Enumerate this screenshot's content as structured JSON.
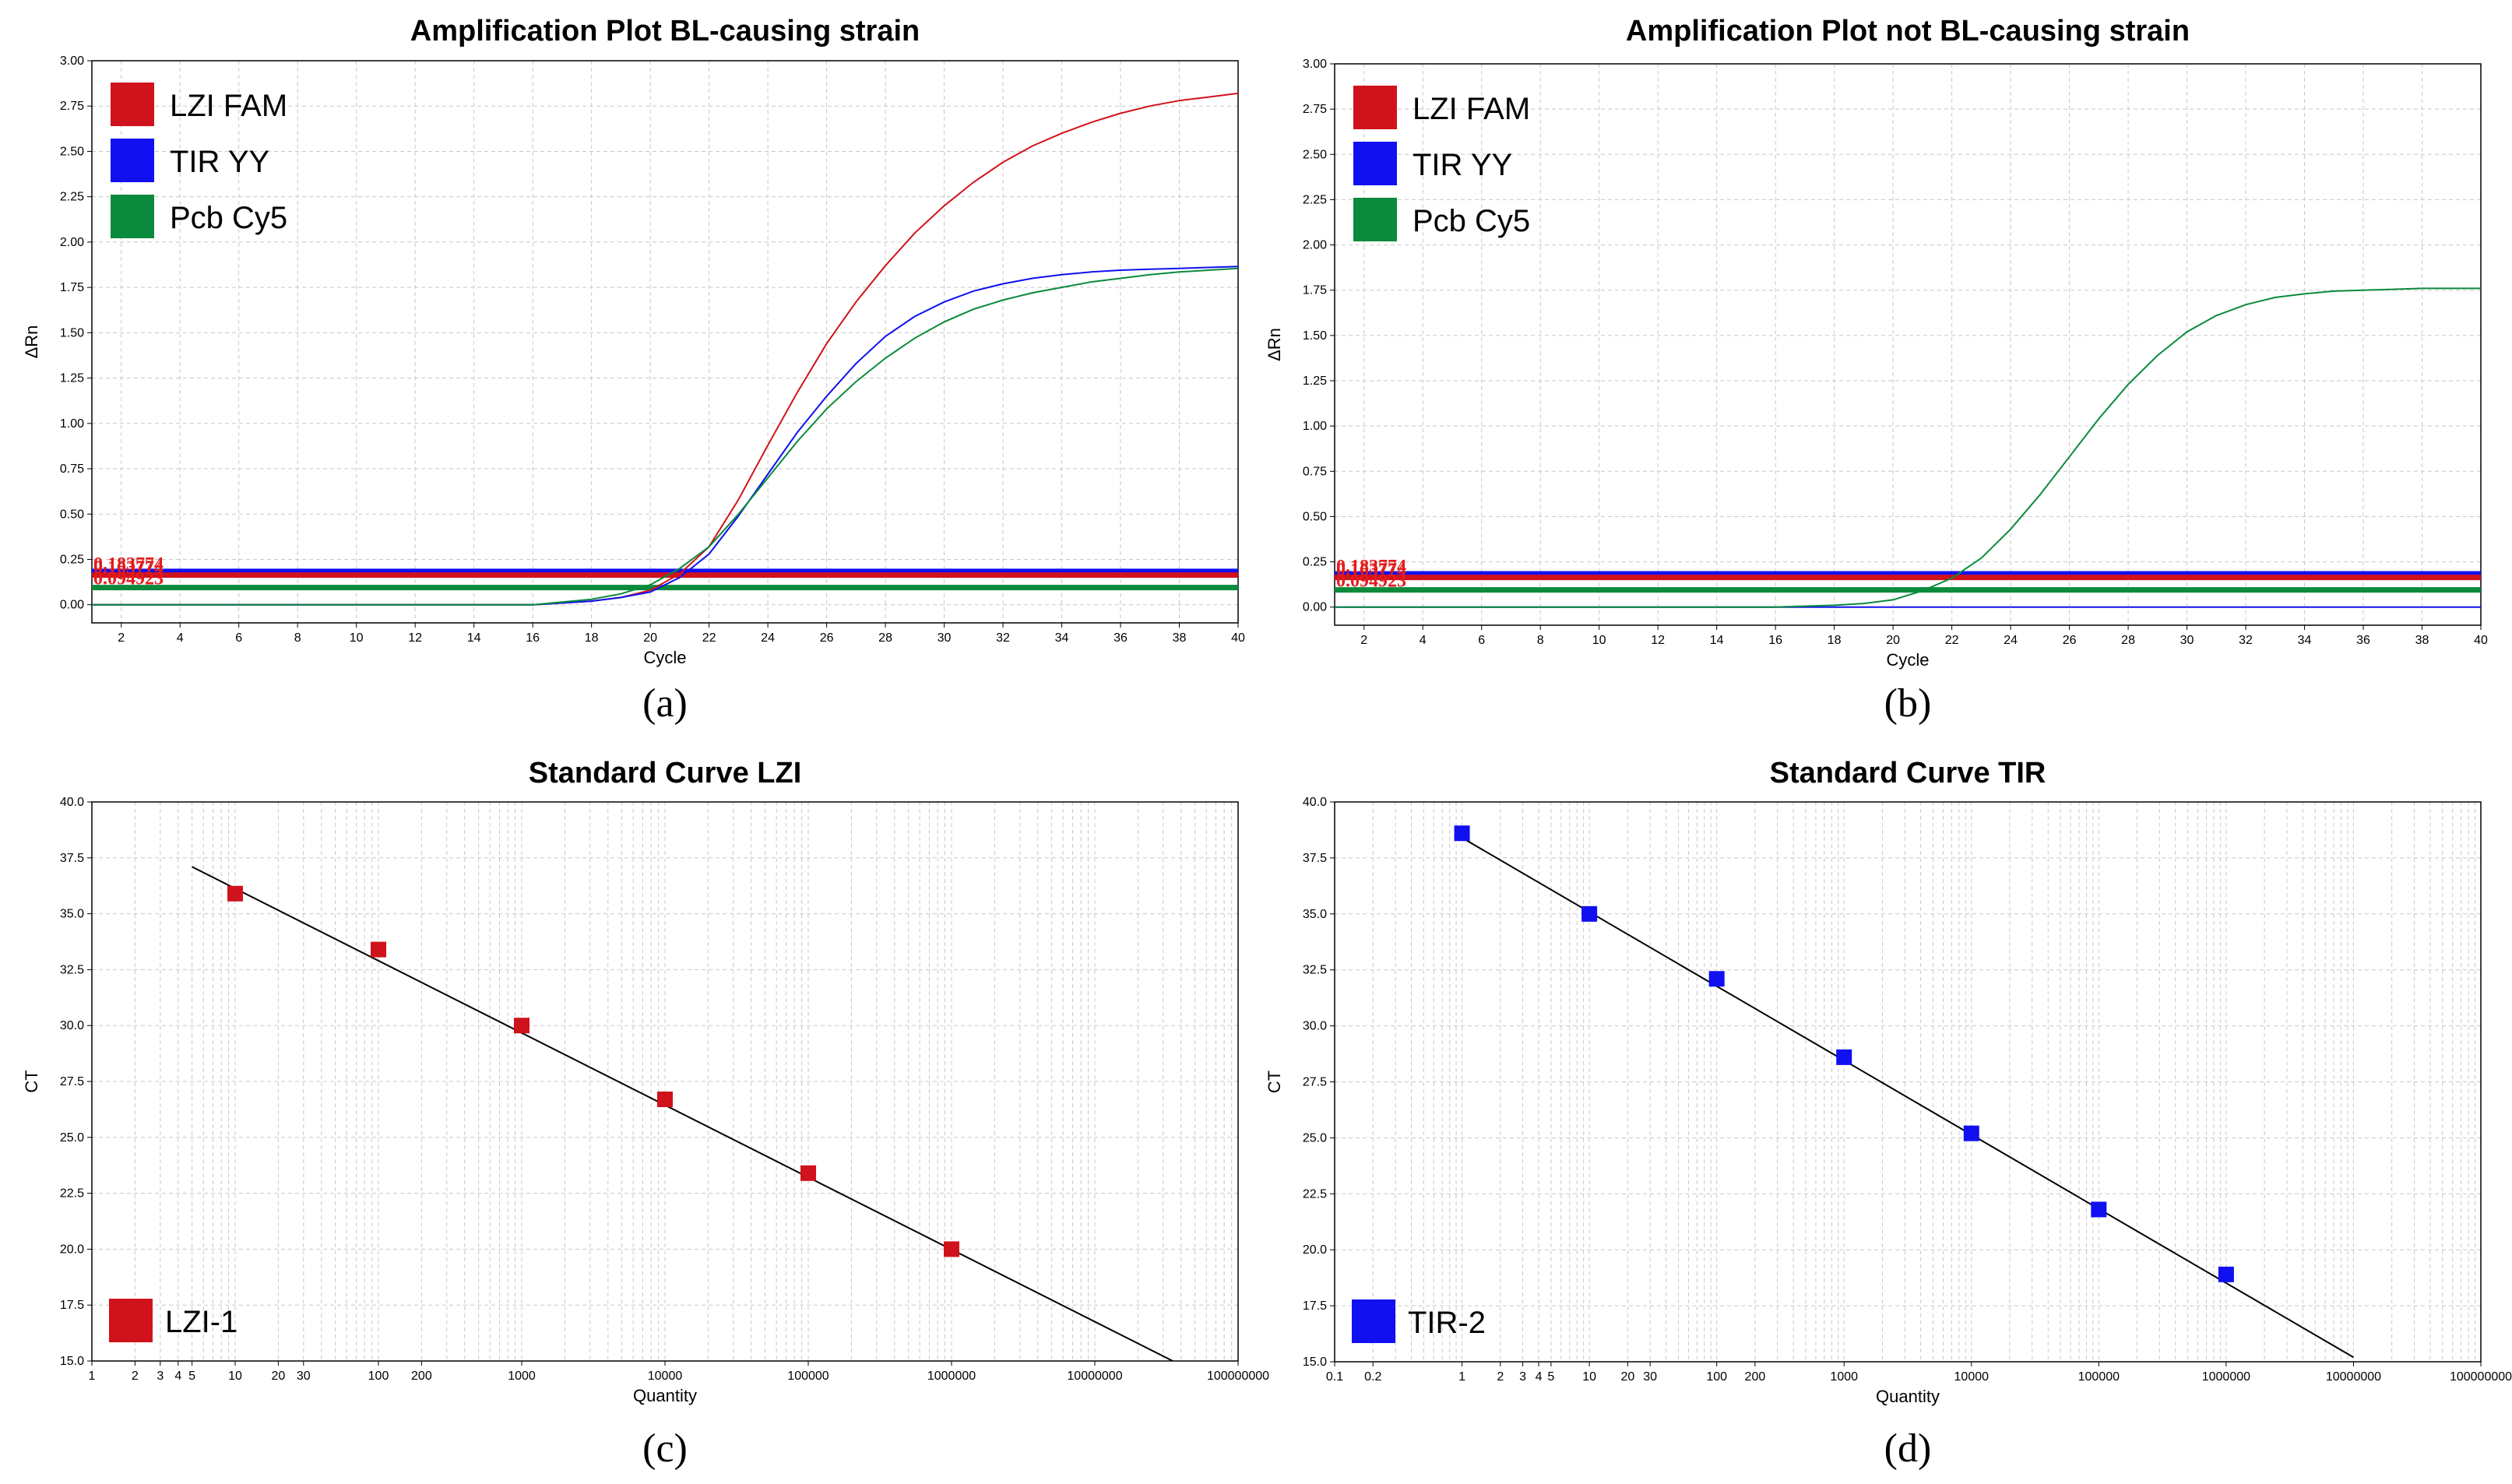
{
  "chart_data": [
    {
      "id": "a",
      "type": "line",
      "sublabel": "(a)",
      "title": "Amplification Plot BL-causing strain",
      "xlabel": "Cycle",
      "ylabel": "ΔRn",
      "xlim": [
        1,
        40
      ],
      "ylim": [
        -0.1,
        3.0
      ],
      "xticks": [
        2,
        4,
        6,
        8,
        10,
        12,
        14,
        16,
        18,
        20,
        22,
        24,
        26,
        28,
        30,
        32,
        34,
        36,
        38,
        40
      ],
      "yticks": [
        0.0,
        0.25,
        0.5,
        0.75,
        1.0,
        1.25,
        1.5,
        1.75,
        2.0,
        2.25,
        2.5,
        2.75,
        3.0
      ],
      "legend": [
        {
          "label": "LZI FAM",
          "color": "#d0121c"
        },
        {
          "label": "TIR YY",
          "color": "#1010f0"
        },
        {
          "label": "Pcb Cy5",
          "color": "#0a8a3c"
        }
      ],
      "thresholds": [
        {
          "value": 0.183774,
          "color": "#1010f0"
        },
        {
          "value": 0.163774,
          "color": "#d0121c"
        },
        {
          "value": 0.094923,
          "color": "#0a8a3c"
        }
      ],
      "threshold_labels": [
        "0.183774",
        "0.163774",
        "0.094923"
      ],
      "series": [
        {
          "name": "LZI FAM",
          "color": "#d0121c",
          "x": [
            1,
            16,
            18,
            19,
            20,
            21,
            22,
            23,
            24,
            25,
            26,
            27,
            28,
            29,
            30,
            31,
            32,
            33,
            34,
            35,
            36,
            37,
            38,
            39,
            40
          ],
          "y": [
            0.0,
            0.0,
            0.02,
            0.04,
            0.08,
            0.17,
            0.32,
            0.58,
            0.88,
            1.17,
            1.44,
            1.67,
            1.87,
            2.05,
            2.2,
            2.33,
            2.44,
            2.53,
            2.6,
            2.66,
            2.71,
            2.75,
            2.78,
            2.8,
            2.82
          ]
        },
        {
          "name": "TIR YY",
          "color": "#1010f0",
          "x": [
            1,
            16,
            18,
            19,
            20,
            21,
            22,
            23,
            24,
            25,
            26,
            27,
            28,
            29,
            30,
            31,
            32,
            33,
            34,
            35,
            36,
            37,
            38,
            39,
            40
          ],
          "y": [
            0.0,
            0.0,
            0.02,
            0.04,
            0.07,
            0.15,
            0.28,
            0.49,
            0.72,
            0.95,
            1.15,
            1.33,
            1.48,
            1.59,
            1.67,
            1.73,
            1.77,
            1.8,
            1.82,
            1.835,
            1.845,
            1.85,
            1.855,
            1.86,
            1.865
          ]
        },
        {
          "name": "Pcb Cy5",
          "color": "#0a8a3c",
          "x": [
            1,
            16,
            18,
            19,
            20,
            21,
            22,
            23,
            24,
            25,
            26,
            27,
            28,
            29,
            30,
            31,
            32,
            33,
            34,
            35,
            36,
            37,
            38,
            39,
            40
          ],
          "y": [
            0.0,
            0.0,
            0.03,
            0.06,
            0.11,
            0.2,
            0.32,
            0.5,
            0.7,
            0.9,
            1.08,
            1.23,
            1.36,
            1.47,
            1.56,
            1.63,
            1.68,
            1.72,
            1.75,
            1.78,
            1.8,
            1.82,
            1.835,
            1.845,
            1.855
          ]
        }
      ]
    },
    {
      "id": "b",
      "type": "line",
      "sublabel": "(b)",
      "title": "Amplification Plot not BL-causing strain",
      "xlabel": "Cycle",
      "ylabel": "ΔRn",
      "xlim": [
        1,
        40
      ],
      "ylim": [
        -0.1,
        3.0
      ],
      "xticks": [
        2,
        4,
        6,
        8,
        10,
        12,
        14,
        16,
        18,
        20,
        22,
        24,
        26,
        28,
        30,
        32,
        34,
        36,
        38,
        40
      ],
      "yticks": [
        0.0,
        0.25,
        0.5,
        0.75,
        1.0,
        1.25,
        1.5,
        1.75,
        2.0,
        2.25,
        2.5,
        2.75,
        3.0
      ],
      "legend": [
        {
          "label": "LZI FAM",
          "color": "#d0121c"
        },
        {
          "label": "TIR YY",
          "color": "#1010f0"
        },
        {
          "label": "Pcb Cy5",
          "color": "#0a8a3c"
        }
      ],
      "thresholds": [
        {
          "value": 0.183774,
          "color": "#1010f0"
        },
        {
          "value": 0.163774,
          "color": "#d0121c"
        },
        {
          "value": 0.094923,
          "color": "#0a8a3c"
        }
      ],
      "threshold_labels": [
        "0.183774",
        "0.163774",
        "0.094923"
      ],
      "series": [
        {
          "name": "TIR YY",
          "color": "#1010f0",
          "x": [
            1,
            40
          ],
          "y": [
            0.0,
            0.0
          ]
        },
        {
          "name": "Pcb Cy5",
          "color": "#0a8a3c",
          "x": [
            1,
            16,
            18,
            19,
            20,
            21,
            22,
            23,
            24,
            25,
            26,
            27,
            28,
            29,
            30,
            31,
            32,
            33,
            34,
            35,
            36,
            37,
            38,
            39,
            40
          ],
          "y": [
            0.0,
            0.0,
            0.01,
            0.02,
            0.04,
            0.09,
            0.16,
            0.27,
            0.43,
            0.62,
            0.83,
            1.04,
            1.23,
            1.39,
            1.52,
            1.61,
            1.67,
            1.71,
            1.73,
            1.745,
            1.75,
            1.755,
            1.76,
            1.76,
            1.76
          ]
        }
      ]
    },
    {
      "id": "c",
      "type": "scatter",
      "sublabel": "(c)",
      "title": "Standard Curve LZI",
      "xlabel": "Quantity",
      "ylabel": "CT",
      "xscale": "log",
      "xlim": [
        1,
        100000000
      ],
      "ylim": [
        15.0,
        40.0
      ],
      "xtick_labels": [
        "1",
        "2",
        "3",
        "4",
        "5",
        "10",
        "20",
        "30",
        "100",
        "200",
        "1000",
        "10000",
        "100000",
        "1000000",
        "10000000",
        "100000000"
      ],
      "yticks": [
        15.0,
        17.5,
        20.0,
        22.5,
        25.0,
        27.5,
        30.0,
        32.5,
        35.0,
        37.5,
        40.0
      ],
      "legend": [
        {
          "label": "LZI-1",
          "color": "#d0121c"
        }
      ],
      "points": {
        "name": "LZI-1",
        "color": "#d0121c",
        "x": [
          10,
          100,
          1000,
          10000,
          100000,
          1000000
        ],
        "y": [
          35.9,
          33.4,
          30.0,
          26.7,
          23.4,
          20.0
        ]
      },
      "fit": {
        "x": [
          5,
          35000000
        ],
        "y": [
          37.1,
          15.0
        ]
      }
    },
    {
      "id": "d",
      "type": "scatter",
      "sublabel": "(d)",
      "title": "Standard Curve TIR",
      "xlabel": "Quantity",
      "ylabel": "CT",
      "xscale": "log",
      "xlim": [
        0.1,
        100000000
      ],
      "ylim": [
        15.0,
        40.0
      ],
      "xtick_labels": [
        "0.1",
        "0.2",
        "1",
        "2",
        "3",
        "4",
        "5",
        "10",
        "20",
        "30",
        "100",
        "200",
        "1000",
        "10000",
        "100000",
        "1000000",
        "10000000",
        "100000000"
      ],
      "yticks": [
        15.0,
        17.5,
        20.0,
        22.5,
        25.0,
        27.5,
        30.0,
        32.5,
        35.0,
        37.5,
        40.0
      ],
      "legend": [
        {
          "label": "TIR-2",
          "color": "#1010f0"
        }
      ],
      "points": {
        "name": "TIR-2",
        "color": "#1010f0",
        "x": [
          1,
          10,
          100,
          1000,
          10000,
          100000,
          1000000
        ],
        "y": [
          38.6,
          35.0,
          32.1,
          28.6,
          25.2,
          21.8,
          18.9
        ]
      },
      "fit": {
        "x": [
          1,
          10000000
        ],
        "y": [
          38.4,
          15.2
        ]
      }
    }
  ]
}
